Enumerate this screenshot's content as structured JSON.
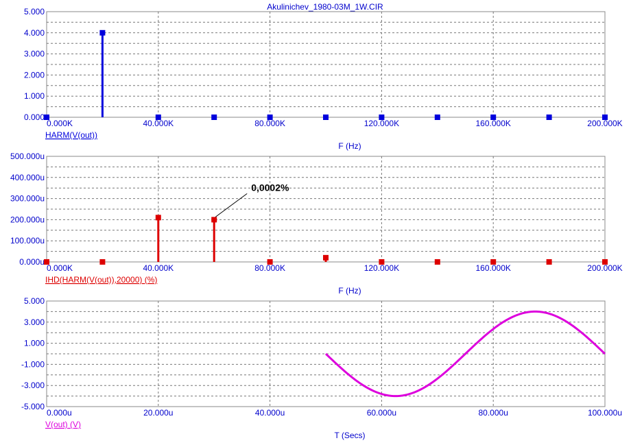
{
  "page": {
    "title": "Akulinichev_1980-03M_1W.CIR"
  },
  "chart_data": [
    {
      "type": "bar",
      "style": "stem",
      "series": [
        {
          "name": "HARM(V(out))",
          "color": "#0000dd",
          "x": [
            0,
            20000,
            40000,
            60000,
            80000,
            100000,
            120000,
            140000,
            160000,
            180000,
            200000
          ],
          "values": [
            0,
            4.0,
            0,
            0,
            0,
            0,
            0,
            0,
            0,
            0,
            0
          ]
        }
      ],
      "xlabel": "F (Hz)",
      "xlim": [
        0,
        200000
      ],
      "ylim": [
        0,
        5
      ],
      "xticks": [
        0,
        40000,
        80000,
        120000,
        160000,
        200000
      ],
      "xtick_labels": [
        "0.000K",
        "40.000K",
        "80.000K",
        "120.000K",
        "160.000K",
        "200.000K"
      ],
      "yticks": [
        0,
        1,
        2,
        3,
        4,
        5
      ],
      "ytick_labels": [
        "0.000",
        "1.000",
        "2.000",
        "3.000",
        "4.000",
        "5.000"
      ],
      "grid": true
    },
    {
      "type": "bar",
      "style": "stem",
      "series": [
        {
          "name": "IHD(HARM(V(out)),20000) (%)",
          "color": "#dd0000",
          "x": [
            0,
            20000,
            40000,
            60000,
            80000,
            100000,
            120000,
            140000,
            160000,
            180000,
            200000
          ],
          "values": [
            0,
            0,
            0.00021,
            0.0002,
            0,
            2e-05,
            0,
            0,
            0,
            0,
            0
          ]
        }
      ],
      "annotation": {
        "text": "0,0002%",
        "x": 60000,
        "y": 0.0002
      },
      "xlabel": "F (Hz)",
      "xlim": [
        0,
        200000
      ],
      "ylim": [
        0,
        0.0005
      ],
      "xticks": [
        0,
        40000,
        80000,
        120000,
        160000,
        200000
      ],
      "xtick_labels": [
        "0.000K",
        "40.000K",
        "80.000K",
        "120.000K",
        "160.000K",
        "200.000K"
      ],
      "yticks": [
        0,
        0.0001,
        0.0002,
        0.0003,
        0.0004,
        0.0005
      ],
      "ytick_labels": [
        "0.000u",
        "100.000u",
        "200.000u",
        "300.000u",
        "400.000u",
        "500.000u"
      ],
      "grid": true
    },
    {
      "type": "line",
      "series": [
        {
          "name": "V(out) (V)",
          "color": "#dd00dd",
          "function": "sine",
          "amplitude": 4,
          "frequency": 20000,
          "t_start": 5e-05,
          "t_end": 0.0001
        }
      ],
      "xlabel": "T (Secs)",
      "xlim": [
        0,
        0.0001
      ],
      "ylim": [
        -5,
        5
      ],
      "xticks": [
        0,
        2e-05,
        4e-05,
        6e-05,
        8e-05,
        0.0001
      ],
      "xtick_labels": [
        "0.000u",
        "20.000u",
        "40.000u",
        "60.000u",
        "80.000u",
        "100.000u"
      ],
      "yticks": [
        -5,
        -3,
        -1,
        1,
        3,
        5
      ],
      "ytick_labels": [
        "-5.000",
        "-3.000",
        "-1.000",
        "1.000",
        "3.000",
        "5.000"
      ],
      "grid": true
    }
  ]
}
